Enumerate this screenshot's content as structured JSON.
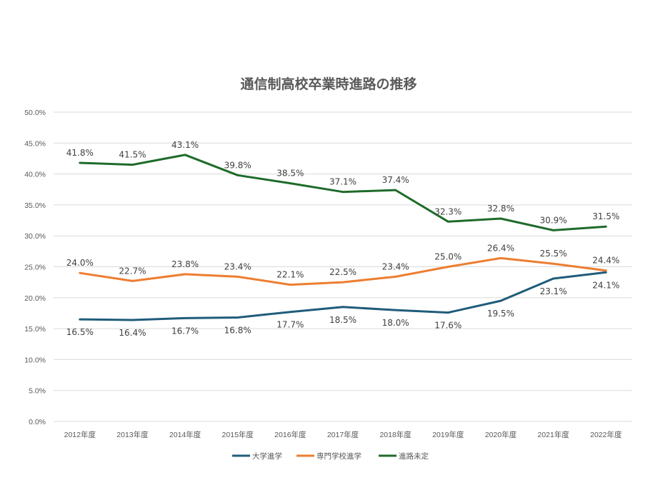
{
  "chart_data": {
    "type": "line",
    "title": "通信制高校卒業時進路の推移",
    "xlabel": "",
    "ylabel": "",
    "categories": [
      "2012年度",
      "2013年度",
      "2014年度",
      "2015年度",
      "2016年度",
      "2017年度",
      "2018年度",
      "2019年度",
      "2020年度",
      "2021年度",
      "2022年度"
    ],
    "ylim": [
      0,
      50
    ],
    "yticks": [
      "0.0%",
      "5.0%",
      "10.0%",
      "15.0%",
      "20.0%",
      "25.0%",
      "30.0%",
      "35.0%",
      "40.0%",
      "45.0%",
      "50.0%"
    ],
    "grid": true,
    "legend_position": "bottom",
    "series": [
      {
        "name": "大学進学",
        "color": "#1f5c7a",
        "values": [
          16.5,
          16.4,
          16.7,
          16.8,
          17.7,
          18.5,
          18.0,
          17.6,
          19.5,
          23.1,
          24.1
        ],
        "labels": [
          "16.5%",
          "16.4%",
          "16.7%",
          "16.8%",
          "17.7%",
          "18.5%",
          "18.0%",
          "17.6%",
          "19.5%",
          "23.1%",
          "24.1%"
        ],
        "label_position": "below"
      },
      {
        "name": "専門学校進学",
        "color": "#ed7d31",
        "values": [
          24.0,
          22.7,
          23.8,
          23.4,
          22.1,
          22.5,
          23.4,
          25.0,
          26.4,
          25.5,
          24.4
        ],
        "labels": [
          "24.0%",
          "22.7%",
          "23.8%",
          "23.4%",
          "22.1%",
          "22.5%",
          "23.4%",
          "25.0%",
          "26.4%",
          "25.5%",
          "24.4%"
        ],
        "label_position": "above"
      },
      {
        "name": "進路未定",
        "color": "#1e6b2a",
        "values": [
          41.8,
          41.5,
          43.1,
          39.8,
          38.5,
          37.1,
          37.4,
          32.3,
          32.8,
          30.9,
          31.5
        ],
        "labels": [
          "41.8%",
          "41.5%",
          "43.1%",
          "39.8%",
          "38.5%",
          "37.1%",
          "37.4%",
          "32.3%",
          "32.8%",
          "30.9%",
          "31.5%"
        ],
        "label_position": "above"
      }
    ]
  }
}
